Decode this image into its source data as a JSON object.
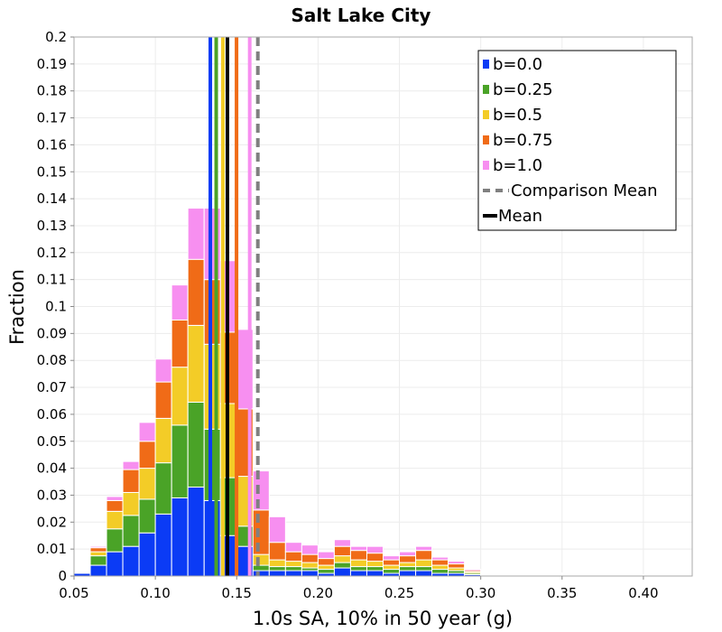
{
  "chart_data": {
    "type": "bar",
    "stacked": true,
    "title": "Salt Lake City",
    "xlabel": "1.0s SA, 10% in 50 year (g)",
    "ylabel": "Fraction",
    "xlim": [
      0.05,
      0.43
    ],
    "ylim": [
      0,
      0.2
    ],
    "bin_width": 0.01,
    "x_ticks": [
      "0.05",
      "0.10",
      "0.15",
      "0.20",
      "0.25",
      "0.30",
      "0.35",
      "0.40"
    ],
    "y_ticks": [
      "0",
      "0.01",
      "0.02",
      "0.03",
      "0.04",
      "0.05",
      "0.06",
      "0.07",
      "0.08",
      "0.09",
      "0.1",
      "0.11",
      "0.12",
      "0.13",
      "0.14",
      "0.15",
      "0.16",
      "0.17",
      "0.18",
      "0.19",
      "0.2"
    ],
    "x": [
      0.055,
      0.065,
      0.075,
      0.085,
      0.095,
      0.105,
      0.115,
      0.125,
      0.135,
      0.145,
      0.155,
      0.165,
      0.175,
      0.185,
      0.195,
      0.205,
      0.215,
      0.225,
      0.235,
      0.245,
      0.255,
      0.265,
      0.275,
      0.285,
      0.295,
      0.305,
      0.315,
      0.325,
      0.335,
      0.345,
      0.355,
      0.365,
      0.375,
      0.385,
      0.395,
      0.405,
      0.415,
      0.425
    ],
    "series": [
      {
        "name": "b=0.0",
        "color": "#0b3bf5",
        "values": [
          0.001,
          0.004,
          0.009,
          0.011,
          0.016,
          0.023,
          0.029,
          0.033,
          0.028,
          0.015,
          0.011,
          0.002,
          0.002,
          0.002,
          0.002,
          0.001,
          0.003,
          0.002,
          0.002,
          0.001,
          0.002,
          0.002,
          0.001,
          0.001,
          0.0005,
          0.0002,
          0.0002,
          0.0002,
          0.0002,
          0.0002,
          0.0003,
          0.0002,
          0,
          0.0002,
          0.0001,
          0,
          0,
          0.0001
        ]
      },
      {
        "name": "b=0.25",
        "color": "#4aa327",
        "values": [
          0.0003,
          0.0035,
          0.0085,
          0.0115,
          0.0125,
          0.019,
          0.027,
          0.0315,
          0.0265,
          0.0215,
          0.0075,
          0.002,
          0.0015,
          0.0015,
          0.001,
          0.0015,
          0.002,
          0.0015,
          0.0015,
          0.0015,
          0.0015,
          0.0015,
          0.0015,
          0.001,
          0.0005,
          0.0002,
          0.0002,
          0.0002,
          0.0002,
          0.0002,
          0.0002,
          0.0002,
          0,
          0.0002,
          0.0001,
          0,
          0,
          0.0001
        ]
      },
      {
        "name": "b=0.5",
        "color": "#f3cc27",
        "values": [
          0.0002,
          0.0015,
          0.0065,
          0.0085,
          0.0115,
          0.0165,
          0.0215,
          0.0285,
          0.0315,
          0.0275,
          0.0185,
          0.004,
          0.0025,
          0.002,
          0.002,
          0.0015,
          0.0025,
          0.0025,
          0.002,
          0.0015,
          0.0015,
          0.0025,
          0.0015,
          0.001,
          0.0005,
          0.0002,
          0.0002,
          0.0002,
          0.0002,
          0.0002,
          0.0002,
          0.0002,
          0,
          0.0002,
          0.0001,
          0,
          0,
          0.0001
        ]
      },
      {
        "name": "b=0.75",
        "color": "#f06b17",
        "values": [
          0.0003,
          0.0015,
          0.004,
          0.0085,
          0.01,
          0.0135,
          0.0175,
          0.0245,
          0.024,
          0.0265,
          0.025,
          0.0165,
          0.0065,
          0.0035,
          0.003,
          0.0025,
          0.0035,
          0.0035,
          0.003,
          0.002,
          0.0025,
          0.0035,
          0.002,
          0.0015,
          0.0005,
          0.0002,
          0.0002,
          0.0002,
          0.0002,
          0.0002,
          0.0003,
          0.0002,
          0,
          0.0002,
          0.0001,
          0,
          0,
          0.0001
        ]
      },
      {
        "name": "b=1.0",
        "color": "#f78ff0",
        "values": [
          0.0002,
          0.0005,
          0.0015,
          0.003,
          0.007,
          0.0085,
          0.013,
          0.019,
          0.0265,
          0.0265,
          0.0295,
          0.0145,
          0.0095,
          0.0035,
          0.0035,
          0.0025,
          0.0025,
          0.0015,
          0.0025,
          0.0015,
          0.0015,
          0.0015,
          0.001,
          0.001,
          0.0005,
          0.0002,
          0.0002,
          0.0002,
          0.0002,
          0.0002,
          0.0002,
          0.0002,
          0,
          0.0002,
          0.0001,
          0,
          0,
          0.0001
        ]
      }
    ],
    "mean_lines": [
      {
        "name": "b=0.0",
        "color": "#0b3bf5",
        "x": 0.1338
      },
      {
        "name": "b=0.25",
        "color": "#4aa327",
        "x": 0.1374
      },
      {
        "name": "b=0.5",
        "color": "#f3cc27",
        "x": 0.1415
      },
      {
        "name": "b=0.75",
        "color": "#f06b17",
        "x": 0.1499
      },
      {
        "name": "b=1.0",
        "color": "#f78ff0",
        "x": 0.158
      },
      {
        "name": "Mean",
        "color": "#000000",
        "x": 0.1443
      }
    ],
    "comparison_mean": {
      "name": "Comparison Mean",
      "color": "#808080",
      "x": 0.163
    },
    "legend_position": "top-right",
    "legend": [
      {
        "label": "b=0.0",
        "kind": "box",
        "color": "#0b3bf5"
      },
      {
        "label": "b=0.25",
        "kind": "box",
        "color": "#4aa327"
      },
      {
        "label": "b=0.5",
        "kind": "box",
        "color": "#f3cc27"
      },
      {
        "label": "b=0.75",
        "kind": "box",
        "color": "#f06b17"
      },
      {
        "label": "b=1.0",
        "kind": "box",
        "color": "#f78ff0"
      },
      {
        "label": "Comparison Mean",
        "kind": "dash",
        "color": "#808080"
      },
      {
        "label": "Mean",
        "kind": "line",
        "color": "#000000"
      }
    ],
    "grid": true
  }
}
